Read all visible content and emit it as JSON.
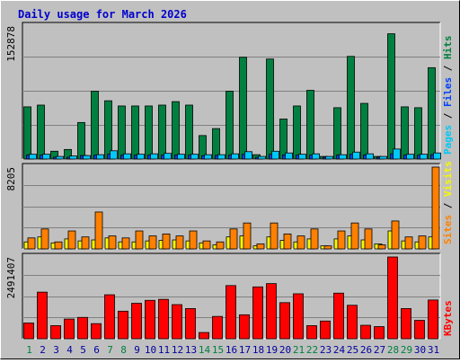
{
  "title": "Daily usage for March 2026",
  "colors": {
    "background": "#C0C0C0",
    "title_text": "#0000CC",
    "hits": "#008040",
    "files": "#0040FF",
    "pages": "#00C8F8",
    "visits": "#F8F800",
    "sites": "#FF8000",
    "kbytes": "#FF0000",
    "weekend_label": "#008040",
    "weekday_label": "#0000A0"
  },
  "chart_data": [
    {
      "type": "bar",
      "name": "hits-files-pages",
      "ylim": [
        0,
        152878
      ],
      "max_label": "152878",
      "legend": [
        "Pages",
        "Files",
        "Hits"
      ],
      "categories": [
        "1",
        "2",
        "3",
        "4",
        "5",
        "6",
        "7",
        "8",
        "9",
        "10",
        "11",
        "12",
        "13",
        "14",
        "15",
        "16",
        "17",
        "18",
        "19",
        "20",
        "21",
        "22",
        "23",
        "24",
        "25",
        "26",
        "27",
        "28",
        "29",
        "30",
        "31"
      ],
      "weekend_days": [
        "1",
        "7",
        "8",
        "14",
        "15",
        "21",
        "22",
        "28",
        "29"
      ],
      "series": [
        {
          "name": "Hits",
          "values": [
            60000,
            62000,
            9000,
            11000,
            42000,
            78000,
            67000,
            61000,
            61000,
            61000,
            62000,
            66000,
            62000,
            27000,
            35000,
            78000,
            117000,
            5000,
            115000,
            46000,
            61000,
            79000,
            3000,
            59000,
            118000,
            64000,
            3000,
            144000,
            60000,
            59000,
            105000
          ]
        },
        {
          "name": "Files",
          "values": [
            4500,
            4500,
            2200,
            2000,
            4000,
            4500,
            5500,
            4500,
            4500,
            4500,
            4500,
            4500,
            4500,
            3800,
            4300,
            4500,
            5500,
            2000,
            5500,
            4800,
            4500,
            4500,
            2000,
            4500,
            5500,
            4800,
            2000,
            6000,
            4500,
            4500,
            5000
          ]
        },
        {
          "name": "Pages",
          "values": [
            5500,
            5500,
            3000,
            3500,
            4000,
            5000,
            9500,
            6000,
            5500,
            6000,
            6500,
            5500,
            5500,
            5000,
            5000,
            6000,
            8500,
            3000,
            9000,
            7000,
            5500,
            6000,
            3000,
            5000,
            8000,
            6000,
            3000,
            11500,
            5500,
            5500,
            7000
          ]
        }
      ]
    },
    {
      "type": "bar",
      "name": "visits-sites",
      "ylim": [
        0,
        8205
      ],
      "max_label": "8205",
      "legend": [
        "Sites",
        "Visits"
      ],
      "categories": [
        "1",
        "2",
        "3",
        "4",
        "5",
        "6",
        "7",
        "8",
        "9",
        "10",
        "11",
        "12",
        "13",
        "14",
        "15",
        "16",
        "17",
        "18",
        "19",
        "20",
        "21",
        "22",
        "23",
        "24",
        "25",
        "26",
        "27",
        "28",
        "29",
        "30",
        "31"
      ],
      "series": [
        {
          "name": "Visits",
          "values": [
            700,
            1200,
            600,
            1000,
            800,
            900,
            1100,
            700,
            700,
            800,
            850,
            900,
            800,
            600,
            400,
            1200,
            1300,
            300,
            1200,
            850,
            700,
            1000,
            300,
            1000,
            1300,
            900,
            500,
            1800,
            800,
            700,
            1200
          ]
        },
        {
          "name": "Sites",
          "values": [
            1100,
            2000,
            700,
            1800,
            1200,
            3700,
            1300,
            1100,
            1800,
            1300,
            1500,
            1300,
            1800,
            800,
            700,
            2000,
            2600,
            500,
            2600,
            1500,
            1300,
            2000,
            300,
            1800,
            2600,
            2000,
            400,
            2800,
            1200,
            1300,
            8205
          ]
        }
      ]
    },
    {
      "type": "bar",
      "name": "kbytes",
      "ylim": [
        0,
        2491407
      ],
      "max_label": "2491407",
      "legend": [
        "KBytes"
      ],
      "categories": [
        "1",
        "2",
        "3",
        "4",
        "5",
        "6",
        "7",
        "8",
        "9",
        "10",
        "11",
        "12",
        "13",
        "14",
        "15",
        "16",
        "17",
        "18",
        "19",
        "20",
        "21",
        "22",
        "23",
        "24",
        "25",
        "26",
        "27",
        "28",
        "29",
        "30",
        "31"
      ],
      "series": [
        {
          "name": "KBytes",
          "values": [
            480000,
            1420000,
            400000,
            600000,
            650000,
            460000,
            1340000,
            840000,
            1080000,
            1170000,
            1200000,
            1040000,
            920000,
            190000,
            680000,
            1620000,
            730000,
            1580000,
            1680000,
            1100000,
            1370000,
            400000,
            540000,
            1390000,
            1020000,
            410000,
            370000,
            2491407,
            920000,
            560000,
            1180000
          ]
        }
      ]
    }
  ]
}
